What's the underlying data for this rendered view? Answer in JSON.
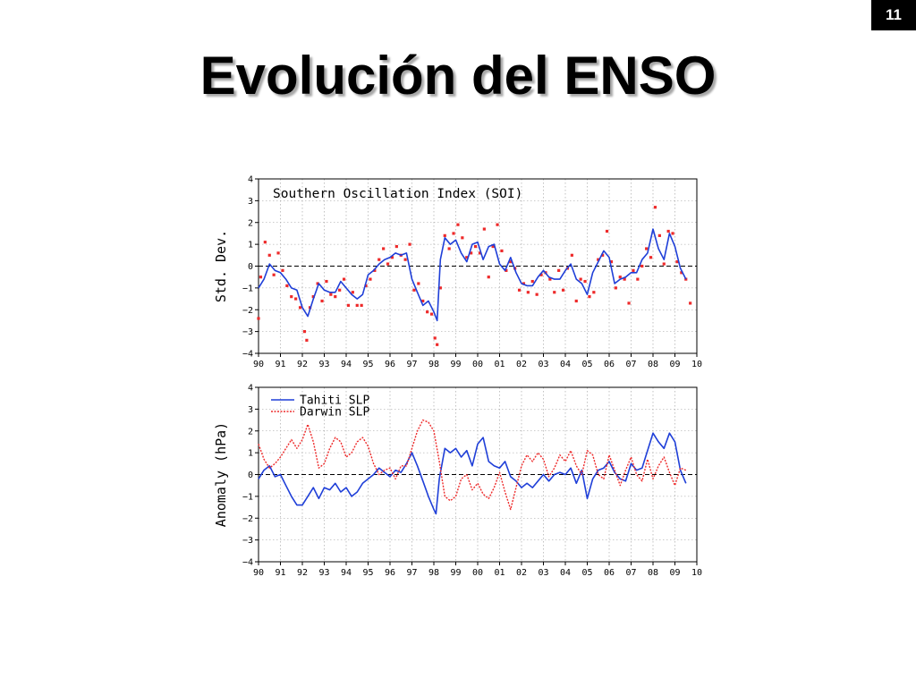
{
  "slide": {
    "number": "11",
    "title": "Evolución del ENSO"
  },
  "chart_data": [
    {
      "type": "line",
      "title": "Southern Oscillation Index (SOI)",
      "ylabel": "Std. Dev.",
      "xlabel": "",
      "xlim": [
        1990,
        2010
      ],
      "ylim": [
        -4,
        4
      ],
      "grid": true,
      "x_tick_labels": [
        "90",
        "91",
        "92",
        "93",
        "94",
        "95",
        "96",
        "97",
        "98",
        "99",
        "00",
        "01",
        "02",
        "03",
        "04",
        "05",
        "06",
        "07",
        "08",
        "09",
        "10"
      ],
      "y_ticks": [
        -4,
        -3,
        -2,
        -1,
        0,
        1,
        2,
        3,
        4
      ],
      "reference_line": 0,
      "colors": {
        "line": "#1f3fd8",
        "points": "#ee2a2a"
      },
      "series": [
        {
          "style": "line",
          "x": [
            1990.0,
            1990.25,
            1990.5,
            1990.75,
            1991.0,
            1991.25,
            1991.5,
            1991.75,
            1992.0,
            1992.25,
            1992.5,
            1992.75,
            1993.0,
            1993.25,
            1993.5,
            1993.75,
            1994.0,
            1994.25,
            1994.5,
            1994.75,
            1995.0,
            1995.25,
            1995.5,
            1995.75,
            1996.0,
            1996.25,
            1996.5,
            1996.75,
            1997.0,
            1997.25,
            1997.5,
            1997.75,
            1998.0,
            1998.15,
            1998.3,
            1998.5,
            1998.75,
            1999.0,
            1999.25,
            1999.5,
            1999.75,
            2000.0,
            2000.25,
            2000.5,
            2000.75,
            2001.0,
            2001.25,
            2001.5,
            2001.75,
            2002.0,
            2002.25,
            2002.5,
            2002.75,
            2003.0,
            2003.25,
            2003.5,
            2003.75,
            2004.0,
            2004.25,
            2004.5,
            2004.75,
            2005.0,
            2005.25,
            2005.5,
            2005.75,
            2006.0,
            2006.25,
            2006.5,
            2006.75,
            2007.0,
            2007.25,
            2007.5,
            2007.75,
            2008.0,
            2008.25,
            2008.5,
            2008.75,
            2009.0,
            2009.25,
            2009.5
          ],
          "y": [
            -1.0,
            -0.6,
            0.1,
            -0.2,
            -0.3,
            -0.6,
            -1.0,
            -1.1,
            -1.9,
            -2.3,
            -1.5,
            -0.8,
            -1.1,
            -1.2,
            -1.2,
            -0.7,
            -1.0,
            -1.3,
            -1.5,
            -1.3,
            -0.4,
            -0.2,
            0.1,
            0.3,
            0.4,
            0.6,
            0.5,
            0.6,
            -0.6,
            -1.2,
            -1.8,
            -1.6,
            -2.1,
            -2.5,
            0.3,
            1.3,
            1.0,
            1.2,
            0.6,
            0.2,
            1.0,
            1.1,
            0.3,
            0.9,
            1.0,
            0.1,
            -0.2,
            0.4,
            -0.3,
            -0.8,
            -0.9,
            -0.9,
            -0.5,
            -0.2,
            -0.5,
            -0.6,
            -0.6,
            -0.2,
            0.1,
            -0.6,
            -0.8,
            -1.3,
            -0.3,
            0.2,
            0.7,
            0.4,
            -0.8,
            -0.6,
            -0.5,
            -0.3,
            -0.3,
            0.3,
            0.6,
            1.7,
            0.8,
            0.3,
            1.5,
            0.9,
            -0.1,
            -0.6
          ]
        },
        {
          "style": "points",
          "x": [
            1990.0,
            1990.1,
            1990.3,
            1990.5,
            1990.7,
            1990.9,
            1991.1,
            1991.3,
            1991.5,
            1991.7,
            1991.9,
            1992.1,
            1992.2,
            1992.35,
            1992.5,
            1992.7,
            1992.9,
            1993.1,
            1993.3,
            1993.5,
            1993.7,
            1993.9,
            1994.1,
            1994.3,
            1994.5,
            1994.7,
            1994.9,
            1995.1,
            1995.3,
            1995.5,
            1995.7,
            1995.9,
            1996.1,
            1996.3,
            1996.5,
            1996.7,
            1996.9,
            1997.1,
            1997.3,
            1997.5,
            1997.7,
            1997.9,
            1998.05,
            1998.15,
            1998.3,
            1998.5,
            1998.7,
            1998.9,
            1999.1,
            1999.3,
            1999.5,
            1999.7,
            1999.9,
            2000.1,
            2000.3,
            2000.5,
            2000.7,
            2000.9,
            2001.1,
            2001.3,
            2001.5,
            2001.7,
            2001.9,
            2002.1,
            2002.3,
            2002.5,
            2002.7,
            2002.9,
            2003.1,
            2003.3,
            2003.5,
            2003.7,
            2003.9,
            2004.1,
            2004.3,
            2004.5,
            2004.7,
            2004.9,
            2005.1,
            2005.3,
            2005.5,
            2005.7,
            2005.9,
            2006.1,
            2006.3,
            2006.5,
            2006.7,
            2006.9,
            2007.1,
            2007.3,
            2007.5,
            2007.7,
            2007.9,
            2008.1,
            2008.3,
            2008.5,
            2008.7,
            2008.9,
            2009.1,
            2009.3,
            2009.5,
            2009.7
          ],
          "y": [
            -2.4,
            -0.5,
            1.1,
            0.5,
            -0.4,
            0.6,
            -0.2,
            -0.9,
            -1.4,
            -1.5,
            -1.9,
            -3.0,
            -3.4,
            -1.9,
            -1.4,
            -0.8,
            -1.6,
            -0.7,
            -1.3,
            -1.4,
            -1.1,
            -0.6,
            -1.8,
            -1.2,
            -1.8,
            -1.8,
            -0.9,
            -0.6,
            -0.2,
            0.3,
            0.8,
            0.1,
            0.4,
            0.9,
            0.5,
            0.3,
            1.0,
            -1.1,
            -0.8,
            -1.6,
            -2.1,
            -2.2,
            -3.3,
            -3.6,
            -1.0,
            1.4,
            0.8,
            1.5,
            1.9,
            1.3,
            0.4,
            0.6,
            0.9,
            0.6,
            1.7,
            -0.5,
            0.9,
            1.9,
            0.7,
            -0.2,
            0.2,
            -0.1,
            -1.1,
            -0.8,
            -1.2,
            -0.7,
            -1.3,
            -0.4,
            -0.3,
            -0.6,
            -1.2,
            -0.2,
            -1.1,
            -0.1,
            0.5,
            -1.6,
            -0.6,
            -0.7,
            -1.4,
            -1.2,
            0.3,
            0.5,
            1.6,
            0.2,
            -1.0,
            -0.5,
            -0.6,
            -1.7,
            -0.2,
            -0.6,
            0.0,
            0.8,
            0.4,
            2.7,
            1.4,
            0.1,
            1.6,
            1.5,
            0.2,
            -0.3,
            -0.6,
            -1.7
          ]
        }
      ]
    },
    {
      "type": "line",
      "title": "",
      "ylabel": "Anomaly (hPa)",
      "xlabel": "",
      "xlim": [
        1990,
        2010
      ],
      "ylim": [
        -4,
        4
      ],
      "grid": true,
      "x_tick_labels": [
        "90",
        "91",
        "92",
        "93",
        "94",
        "95",
        "96",
        "97",
        "98",
        "99",
        "00",
        "01",
        "02",
        "03",
        "04",
        "05",
        "06",
        "07",
        "08",
        "09",
        "10"
      ],
      "y_ticks": [
        -4,
        -3,
        -2,
        -1,
        0,
        1,
        2,
        3,
        4
      ],
      "reference_line": 0,
      "legend_placement": "top-left",
      "series": [
        {
          "name": "Tahiti SLP",
          "color": "#1f3fd8",
          "style": "solid",
          "x": [
            1990.0,
            1990.25,
            1990.5,
            1990.75,
            1991.0,
            1991.25,
            1991.5,
            1991.75,
            1992.0,
            1992.25,
            1992.5,
            1992.75,
            1993.0,
            1993.25,
            1993.5,
            1993.75,
            1994.0,
            1994.25,
            1994.5,
            1994.75,
            1995.0,
            1995.25,
            1995.5,
            1995.75,
            1996.0,
            1996.25,
            1996.5,
            1996.75,
            1997.0,
            1997.25,
            1997.5,
            1997.75,
            1998.0,
            1998.1,
            1998.25,
            1998.5,
            1998.75,
            1999.0,
            1999.25,
            1999.5,
            1999.75,
            2000.0,
            2000.25,
            2000.5,
            2000.75,
            2001.0,
            2001.25,
            2001.5,
            2001.75,
            2002.0,
            2002.25,
            2002.5,
            2002.75,
            2003.0,
            2003.25,
            2003.5,
            2003.75,
            2004.0,
            2004.25,
            2004.5,
            2004.75,
            2005.0,
            2005.25,
            2005.5,
            2005.75,
            2006.0,
            2006.25,
            2006.5,
            2006.75,
            2007.0,
            2007.25,
            2007.5,
            2007.75,
            2008.0,
            2008.25,
            2008.5,
            2008.75,
            2009.0,
            2009.25,
            2009.5
          ],
          "y": [
            -0.2,
            0.2,
            0.4,
            -0.1,
            0.0,
            -0.5,
            -1.0,
            -1.4,
            -1.4,
            -1.0,
            -0.6,
            -1.1,
            -0.6,
            -0.7,
            -0.4,
            -0.8,
            -0.6,
            -1.0,
            -0.8,
            -0.4,
            -0.2,
            0.0,
            0.3,
            0.1,
            -0.1,
            0.2,
            0.1,
            0.5,
            1.0,
            0.4,
            -0.3,
            -1.0,
            -1.6,
            -1.8,
            -0.2,
            1.2,
            1.0,
            1.2,
            0.8,
            1.1,
            0.4,
            1.4,
            1.7,
            0.6,
            0.4,
            0.3,
            0.6,
            -0.1,
            -0.3,
            -0.6,
            -0.4,
            -0.6,
            -0.3,
            0.0,
            -0.3,
            0.0,
            0.1,
            0.0,
            0.3,
            -0.4,
            0.2,
            -1.1,
            -0.2,
            0.2,
            0.3,
            0.6,
            0.1,
            -0.2,
            -0.3,
            0.5,
            0.2,
            0.3,
            1.1,
            1.9,
            1.5,
            1.2,
            1.9,
            1.5,
            0.2,
            -0.4
          ]
        },
        {
          "name": "Darwin SLP",
          "color": "#ee2a2a",
          "style": "dotted",
          "x": [
            1990.0,
            1990.25,
            1990.5,
            1990.75,
            1991.0,
            1991.25,
            1991.5,
            1991.75,
            1992.0,
            1992.25,
            1992.5,
            1992.75,
            1993.0,
            1993.25,
            1993.5,
            1993.75,
            1994.0,
            1994.25,
            1994.5,
            1994.75,
            1995.0,
            1995.25,
            1995.5,
            1995.75,
            1996.0,
            1996.25,
            1996.5,
            1996.75,
            1997.0,
            1997.25,
            1997.5,
            1997.75,
            1998.0,
            1998.25,
            1998.5,
            1998.75,
            1999.0,
            1999.25,
            1999.5,
            1999.75,
            2000.0,
            2000.25,
            2000.5,
            2000.75,
            2001.0,
            2001.25,
            2001.5,
            2001.75,
            2002.0,
            2002.25,
            2002.5,
            2002.75,
            2003.0,
            2003.25,
            2003.5,
            2003.75,
            2004.0,
            2004.25,
            2004.5,
            2004.75,
            2005.0,
            2005.25,
            2005.5,
            2005.75,
            2006.0,
            2006.25,
            2006.5,
            2006.75,
            2007.0,
            2007.25,
            2007.5,
            2007.75,
            2008.0,
            2008.25,
            2008.5,
            2008.75,
            2009.0,
            2009.25,
            2009.5
          ],
          "y": [
            1.4,
            0.7,
            0.3,
            0.5,
            0.8,
            1.2,
            1.6,
            1.2,
            1.6,
            2.3,
            1.5,
            0.3,
            0.5,
            1.2,
            1.7,
            1.5,
            0.8,
            1.0,
            1.5,
            1.7,
            1.3,
            0.5,
            0.0,
            0.2,
            0.3,
            -0.2,
            0.4,
            0.4,
            1.2,
            2.0,
            2.5,
            2.4,
            2.0,
            0.6,
            -1.0,
            -1.2,
            -1.0,
            -0.2,
            0.0,
            -0.7,
            -0.4,
            -0.9,
            -1.1,
            -0.6,
            0.1,
            -0.8,
            -1.6,
            -0.6,
            0.4,
            0.9,
            0.6,
            1.0,
            0.7,
            -0.1,
            0.3,
            0.9,
            0.6,
            1.1,
            0.4,
            0.0,
            1.1,
            0.9,
            0.0,
            -0.2,
            0.9,
            0.2,
            -0.5,
            0.2,
            0.8,
            0.0,
            -0.3,
            0.7,
            -0.2,
            0.4,
            0.8,
            0.1,
            -0.5,
            0.3,
            0.2
          ]
        }
      ]
    }
  ]
}
